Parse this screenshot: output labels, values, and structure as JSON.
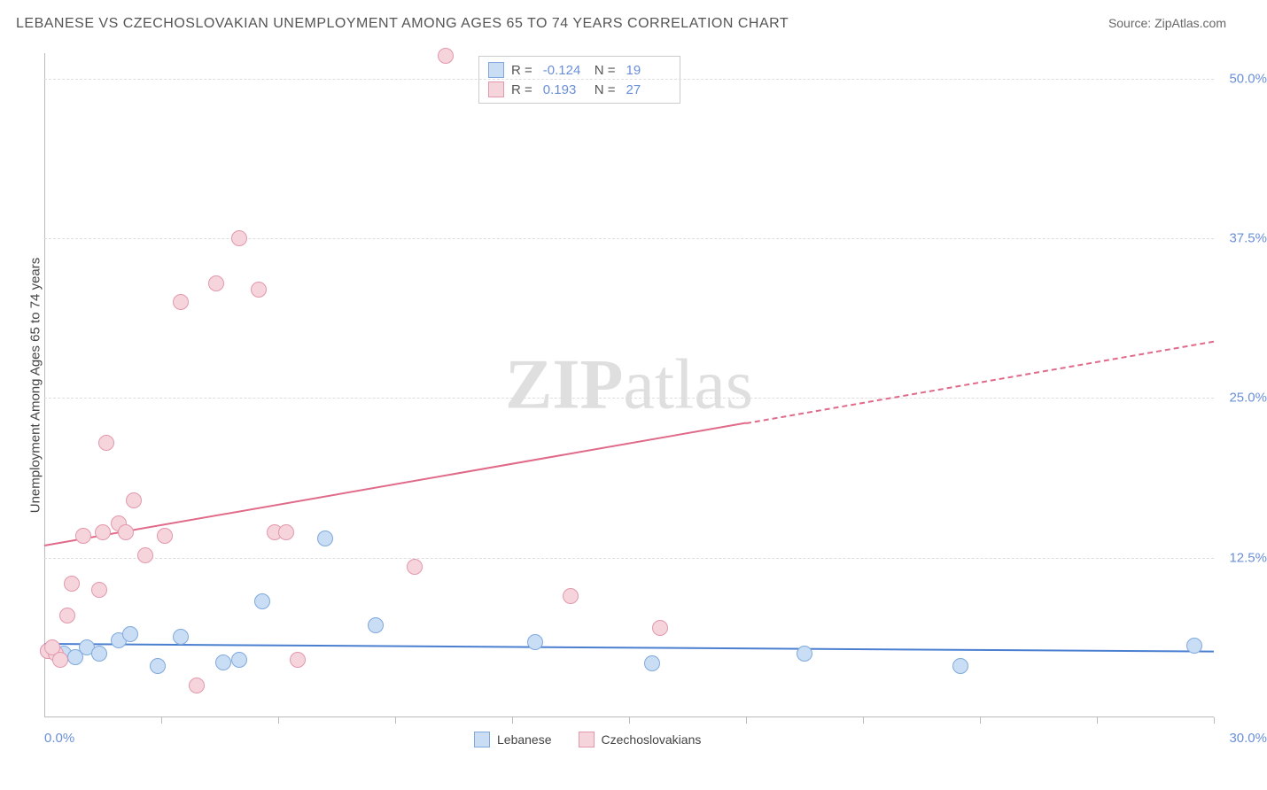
{
  "title": "LEBANESE VS CZECHOSLOVAKIAN UNEMPLOYMENT AMONG AGES 65 TO 74 YEARS CORRELATION CHART",
  "source": "Source: ZipAtlas.com",
  "ylabel": "Unemployment Among Ages 65 to 74 years",
  "watermark_a": "ZIP",
  "watermark_b": "atlas",
  "chart": {
    "type": "scatter",
    "xlim": [
      0,
      30
    ],
    "ylim": [
      0,
      52
    ],
    "x_min_label": "0.0%",
    "x_max_label": "30.0%",
    "y_ticks": [
      12.5,
      25.0,
      37.5,
      50.0
    ],
    "y_tick_labels": [
      "12.5%",
      "25.0%",
      "37.5%",
      "50.0%"
    ],
    "x_tick_positions": [
      3,
      6,
      9,
      12,
      15,
      18,
      21,
      24,
      27,
      30
    ],
    "grid_color": "#dddddd",
    "background_color": "#ffffff",
    "axis_color": "#bbbbbb",
    "tick_label_color": "#6a8fd8"
  },
  "series": [
    {
      "name": "Lebanese",
      "fill_color": "#c9ddf4",
      "stroke_color": "#7fa9dd",
      "line_color": "#4a7fd0",
      "r_value": "-0.124",
      "n_value": "19",
      "marker_radius": 9,
      "points": [
        [
          0.1,
          5.2
        ],
        [
          0.5,
          5.0
        ],
        [
          0.8,
          4.7
        ],
        [
          1.1,
          5.5
        ],
        [
          1.4,
          5.0
        ],
        [
          1.9,
          6.0
        ],
        [
          2.2,
          6.5
        ],
        [
          2.9,
          4.0
        ],
        [
          3.5,
          6.3
        ],
        [
          4.6,
          4.3
        ],
        [
          5.0,
          4.5
        ],
        [
          5.6,
          9.1
        ],
        [
          7.2,
          14.0
        ],
        [
          8.5,
          7.2
        ],
        [
          12.6,
          5.9
        ],
        [
          15.6,
          4.2
        ],
        [
          19.5,
          5.0
        ],
        [
          23.5,
          4.0
        ],
        [
          29.5,
          5.6
        ]
      ],
      "trend": {
        "x1": 0,
        "y1": 5.8,
        "x2": 30,
        "y2": 5.2
      }
    },
    {
      "name": "Czechoslovakians",
      "fill_color": "#f6d4dc",
      "stroke_color": "#e398ac",
      "line_color": "#e06a89",
      "r_value": "0.193",
      "n_value": "27",
      "marker_radius": 9,
      "points": [
        [
          0.1,
          5.2
        ],
        [
          0.3,
          5.0
        ],
        [
          0.2,
          5.5
        ],
        [
          0.6,
          8.0
        ],
        [
          0.7,
          10.5
        ],
        [
          1.0,
          14.2
        ],
        [
          1.4,
          10.0
        ],
        [
          1.5,
          14.5
        ],
        [
          1.6,
          21.5
        ],
        [
          1.9,
          15.2
        ],
        [
          2.1,
          14.5
        ],
        [
          2.3,
          17.0
        ],
        [
          2.6,
          12.7
        ],
        [
          3.1,
          14.2
        ],
        [
          3.5,
          32.5
        ],
        [
          3.9,
          2.5
        ],
        [
          4.4,
          34.0
        ],
        [
          5.0,
          37.5
        ],
        [
          5.5,
          33.5
        ],
        [
          5.9,
          14.5
        ],
        [
          6.2,
          14.5
        ],
        [
          6.5,
          4.5
        ],
        [
          9.5,
          11.8
        ],
        [
          10.3,
          51.8
        ],
        [
          13.5,
          9.5
        ],
        [
          15.8,
          7.0
        ],
        [
          0.4,
          4.5
        ]
      ],
      "trend": {
        "x1": 0,
        "y1": 13.5,
        "x2": 30,
        "y2": 29.5
      },
      "trend_solid_until_x": 18
    }
  ],
  "legend": {
    "items": [
      "Lebanese",
      "Czechoslovakians"
    ]
  },
  "stats_labels": {
    "r": "R =",
    "n": "N ="
  }
}
